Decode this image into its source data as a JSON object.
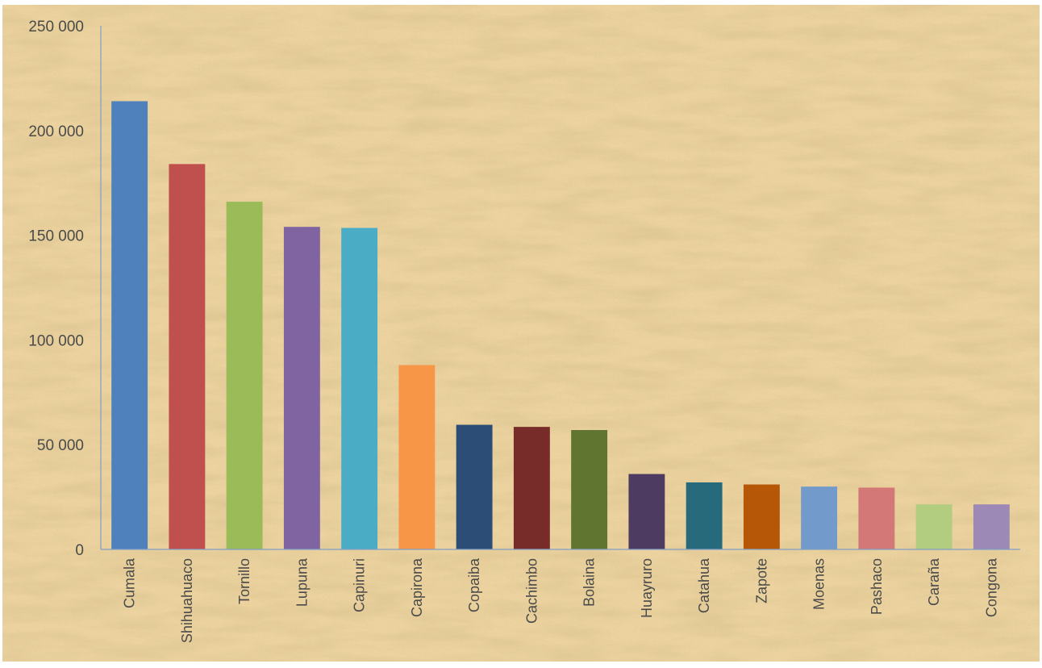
{
  "chart_data": {
    "type": "bar",
    "title": "",
    "xlabel": "",
    "ylabel": "",
    "ylim": [
      0,
      250000
    ],
    "y_ticks": [
      {
        "value": 0,
        "label": "0"
      },
      {
        "value": 50000,
        "label": "50 000"
      },
      {
        "value": 100000,
        "label": "100 000"
      },
      {
        "value": 150000,
        "label": "150 000"
      },
      {
        "value": 200000,
        "label": "200 000"
      },
      {
        "value": 250000,
        "label": "250 000"
      }
    ],
    "grid": false,
    "legend": "none",
    "background": "parchment texture",
    "categories": [
      "Cumala",
      "Shihuahuaco",
      "Tornillo",
      "Lupuna",
      "Capinuri",
      "Capirona",
      "Copaiba",
      "Cachimbo",
      "Bolaina",
      "Huayruro",
      "Catahua",
      "Zapote",
      "Moenas",
      "Pashaco",
      "Carаña",
      "Congona"
    ],
    "values": [
      214000,
      184000,
      166000,
      154000,
      153500,
      88000,
      59500,
      58500,
      57000,
      36000,
      32000,
      31000,
      30000,
      29500,
      21500,
      21500
    ],
    "colors": [
      "#4f81bd",
      "#c0504d",
      "#9bbb59",
      "#8064a2",
      "#4bacc6",
      "#f79646",
      "#2c4d75",
      "#772c2a",
      "#5f7530",
      "#4d3b62",
      "#276a7c",
      "#b65708",
      "#729aca",
      "#d37876",
      "#b2cd7f",
      "#9d89b5"
    ]
  }
}
